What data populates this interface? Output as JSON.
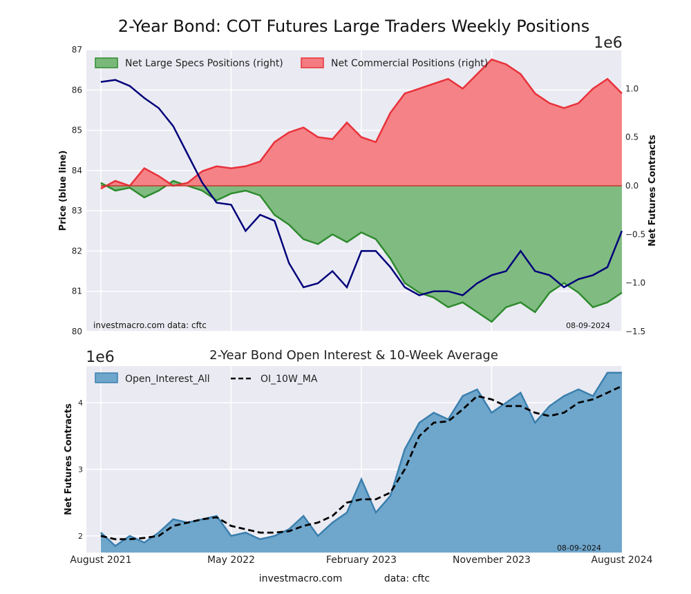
{
  "figure": {
    "title": "2-Year Bond: COT Futures Large Traders Weekly Positions",
    "footer_left": "investmacro.com",
    "footer_right": "data: cftc"
  },
  "colors": {
    "background": "#eaeaf2",
    "price_line": "#00007a",
    "specs": "#2e8b2e",
    "specs_fill": "#7ab87a",
    "commercial": "#e8313a",
    "commercial_fill": "#f47c80",
    "oi": "#3a7fae",
    "oi_fill": "#6fa6cb",
    "ma": "#000000"
  },
  "chart_data": [
    {
      "type": "line",
      "title": "",
      "watermark": "investmacro.com    data: cftc",
      "date_label": "08-09-2024",
      "offset_label": "1e6",
      "ylabel": "Price (blue line)",
      "y2label": "Net Futures Contracts",
      "ylim": [
        80,
        87
      ],
      "y2lim": [
        -1.5,
        1.4
      ],
      "yticks": [
        "80",
        "81",
        "82",
        "83",
        "84",
        "85",
        "86",
        "87"
      ],
      "y2ticks": [
        "−1.5",
        "−1.0",
        "−0.5",
        "0.0",
        "0.5",
        "1.0"
      ],
      "legend_position": "top-left",
      "legend": [
        "Net Large Specs Positions (right)",
        "Net Commercial Positions (right)"
      ],
      "x_range": [
        "2021-07",
        "2024-08"
      ],
      "series": [
        {
          "name": "Net Large Specs Positions (right)",
          "axis": "right",
          "style": "area",
          "x": [
            "2021-08",
            "2021-09",
            "2021-10",
            "2021-11",
            "2021-12",
            "2022-01",
            "2022-02",
            "2022-03",
            "2022-04",
            "2022-05",
            "2022-06",
            "2022-07",
            "2022-08",
            "2022-09",
            "2022-10",
            "2022-11",
            "2022-12",
            "2023-01",
            "2023-02",
            "2023-03",
            "2023-04",
            "2023-05",
            "2023-06",
            "2023-07",
            "2023-08",
            "2023-09",
            "2023-10",
            "2023-11",
            "2023-12",
            "2024-01",
            "2024-02",
            "2024-03",
            "2024-04",
            "2024-05",
            "2024-06",
            "2024-07",
            "2024-08"
          ],
          "values": [
            0.03,
            -0.05,
            -0.02,
            -0.12,
            -0.05,
            0.05,
            0.0,
            -0.05,
            -0.15,
            -0.08,
            -0.05,
            -0.1,
            -0.3,
            -0.4,
            -0.55,
            -0.6,
            -0.5,
            -0.58,
            -0.48,
            -0.55,
            -0.75,
            -1.0,
            -1.1,
            -1.15,
            -1.25,
            -1.2,
            -1.3,
            -1.4,
            -1.25,
            -1.2,
            -1.3,
            -1.1,
            -1.0,
            -1.1,
            -1.25,
            -1.2,
            -1.1
          ]
        },
        {
          "name": "Net Commercial Positions (right)",
          "axis": "right",
          "style": "area",
          "x": [
            "2021-08",
            "2021-09",
            "2021-10",
            "2021-11",
            "2021-12",
            "2022-01",
            "2022-02",
            "2022-03",
            "2022-04",
            "2022-05",
            "2022-06",
            "2022-07",
            "2022-08",
            "2022-09",
            "2022-10",
            "2022-11",
            "2022-12",
            "2023-01",
            "2023-02",
            "2023-03",
            "2023-04",
            "2023-05",
            "2023-06",
            "2023-07",
            "2023-08",
            "2023-09",
            "2023-10",
            "2023-11",
            "2023-12",
            "2024-01",
            "2024-02",
            "2024-03",
            "2024-04",
            "2024-05",
            "2024-06",
            "2024-07",
            "2024-08"
          ],
          "values": [
            -0.03,
            0.05,
            0.0,
            0.18,
            0.1,
            0.0,
            0.03,
            0.15,
            0.2,
            0.18,
            0.2,
            0.25,
            0.45,
            0.55,
            0.6,
            0.5,
            0.48,
            0.65,
            0.5,
            0.45,
            0.75,
            0.95,
            1.0,
            1.05,
            1.1,
            1.0,
            1.15,
            1.3,
            1.25,
            1.15,
            0.95,
            0.85,
            0.8,
            0.85,
            1.0,
            1.1,
            0.95
          ]
        },
        {
          "name": "Price (blue line)",
          "axis": "left",
          "style": "line",
          "x": [
            "2021-08",
            "2021-09",
            "2021-10",
            "2021-11",
            "2021-12",
            "2022-01",
            "2022-02",
            "2022-03",
            "2022-04",
            "2022-05",
            "2022-06",
            "2022-07",
            "2022-08",
            "2022-09",
            "2022-10",
            "2022-11",
            "2022-12",
            "2023-01",
            "2023-02",
            "2023-03",
            "2023-04",
            "2023-05",
            "2023-06",
            "2023-07",
            "2023-08",
            "2023-09",
            "2023-10",
            "2023-11",
            "2023-12",
            "2024-01",
            "2024-02",
            "2024-03",
            "2024-04",
            "2024-05",
            "2024-06",
            "2024-07",
            "2024-08"
          ],
          "values": [
            86.2,
            86.25,
            86.1,
            85.8,
            85.55,
            85.1,
            84.4,
            83.7,
            83.2,
            83.15,
            82.5,
            82.9,
            82.75,
            81.7,
            81.1,
            81.2,
            81.5,
            81.1,
            82.0,
            82.0,
            81.6,
            81.1,
            80.9,
            81.0,
            81.0,
            80.9,
            81.2,
            81.4,
            81.5,
            82.0,
            81.5,
            81.4,
            81.1,
            81.3,
            81.4,
            81.6,
            82.5
          ]
        }
      ]
    },
    {
      "type": "area",
      "title": "2-Year Bond Open Interest & 10-Week Average",
      "date_label": "08-09-2024",
      "offset_label": "1e6",
      "ylabel": "Net Futures Contracts",
      "ylim": [
        1.75,
        4.55
      ],
      "yticks": [
        "2",
        "3",
        "4"
      ],
      "xticks": [
        "August 2021",
        "May 2022",
        "February 2023",
        "November 2023",
        "August 2024"
      ],
      "legend_position": "top-left",
      "legend": [
        "Open_Interest_All",
        "OI_10W_MA"
      ],
      "series": [
        {
          "name": "Open_Interest_All",
          "style": "area",
          "x": [
            "2021-08",
            "2021-09",
            "2021-10",
            "2021-11",
            "2021-12",
            "2022-01",
            "2022-02",
            "2022-03",
            "2022-04",
            "2022-05",
            "2022-06",
            "2022-07",
            "2022-08",
            "2022-09",
            "2022-10",
            "2022-11",
            "2022-12",
            "2023-01",
            "2023-02",
            "2023-03",
            "2023-04",
            "2023-05",
            "2023-06",
            "2023-07",
            "2023-08",
            "2023-09",
            "2023-10",
            "2023-11",
            "2023-12",
            "2024-01",
            "2024-02",
            "2024-03",
            "2024-04",
            "2024-05",
            "2024-06",
            "2024-07",
            "2024-08"
          ],
          "values": [
            2.05,
            1.85,
            2.0,
            1.9,
            2.05,
            2.25,
            2.2,
            2.25,
            2.3,
            2.0,
            2.05,
            1.95,
            2.0,
            2.1,
            2.3,
            2.0,
            2.2,
            2.35,
            2.85,
            2.35,
            2.6,
            3.3,
            3.7,
            3.85,
            3.75,
            4.1,
            4.2,
            3.85,
            4.0,
            4.15,
            3.7,
            3.95,
            4.1,
            4.2,
            4.1,
            4.45,
            4.45
          ]
        },
        {
          "name": "OI_10W_MA",
          "style": "dashed-line",
          "x": [
            "2021-08",
            "2021-09",
            "2021-10",
            "2021-11",
            "2021-12",
            "2022-01",
            "2022-02",
            "2022-03",
            "2022-04",
            "2022-05",
            "2022-06",
            "2022-07",
            "2022-08",
            "2022-09",
            "2022-10",
            "2022-11",
            "2022-12",
            "2023-01",
            "2023-02",
            "2023-03",
            "2023-04",
            "2023-05",
            "2023-06",
            "2023-07",
            "2023-08",
            "2023-09",
            "2023-10",
            "2023-11",
            "2023-12",
            "2024-01",
            "2024-02",
            "2024-03",
            "2024-04",
            "2024-05",
            "2024-06",
            "2024-07",
            "2024-08"
          ],
          "values": [
            2.0,
            1.95,
            1.95,
            1.97,
            2.0,
            2.15,
            2.2,
            2.25,
            2.28,
            2.15,
            2.1,
            2.05,
            2.05,
            2.07,
            2.15,
            2.2,
            2.3,
            2.5,
            2.55,
            2.55,
            2.65,
            3.0,
            3.5,
            3.7,
            3.72,
            3.9,
            4.1,
            4.05,
            3.95,
            3.95,
            3.85,
            3.8,
            3.85,
            4.0,
            4.05,
            4.15,
            4.25
          ]
        }
      ]
    }
  ]
}
